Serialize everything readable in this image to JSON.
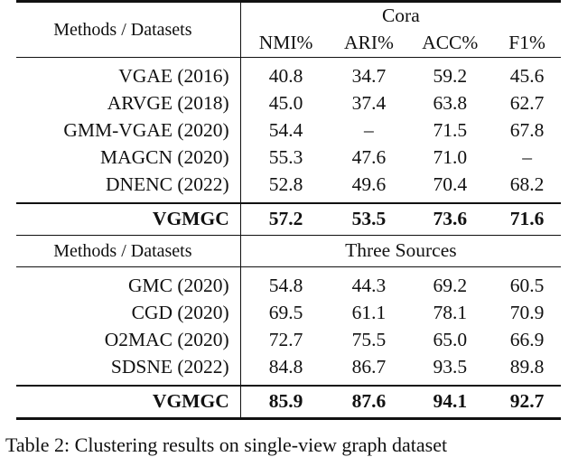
{
  "table": {
    "header_methods": "Methods / Datasets",
    "cora": {
      "dataset": "Cora",
      "columns": [
        "NMI%",
        "ARI%",
        "ACC%",
        "F1%"
      ],
      "rows": [
        {
          "method": "VGAE (2016)",
          "values": [
            "40.8",
            "34.7",
            "59.2",
            "45.6"
          ]
        },
        {
          "method": "ARVGE (2018)",
          "values": [
            "45.0",
            "37.4",
            "63.8",
            "62.7"
          ]
        },
        {
          "method": "GMM-VGAE (2020)",
          "values": [
            "54.4",
            "–",
            "71.5",
            "67.8"
          ]
        },
        {
          "method": "MAGCN (2020)",
          "values": [
            "55.3",
            "47.6",
            "71.0",
            "–"
          ]
        },
        {
          "method": "DNENC (2022)",
          "values": [
            "52.8",
            "49.6",
            "70.4",
            "68.2"
          ]
        }
      ],
      "ours": {
        "method": "VGMGC",
        "values": [
          "57.2",
          "53.5",
          "73.6",
          "71.6"
        ]
      }
    },
    "three_sources": {
      "dataset": "Three Sources",
      "rows": [
        {
          "method": "GMC (2020)",
          "values": [
            "54.8",
            "44.3",
            "69.2",
            "60.5"
          ]
        },
        {
          "method": "CGD (2020)",
          "values": [
            "69.5",
            "61.1",
            "78.1",
            "70.9"
          ]
        },
        {
          "method": "O2MAC (2020)",
          "values": [
            "72.7",
            "75.5",
            "65.0",
            "66.9"
          ]
        },
        {
          "method": "SDSNE (2022)",
          "values": [
            "84.8",
            "86.7",
            "93.5",
            "89.8"
          ]
        }
      ],
      "ours": {
        "method": "VGMGC",
        "values": [
          "85.9",
          "87.6",
          "94.1",
          "92.7"
        ]
      }
    }
  },
  "caption": "Table 2: Clustering results on single-view graph dataset"
}
